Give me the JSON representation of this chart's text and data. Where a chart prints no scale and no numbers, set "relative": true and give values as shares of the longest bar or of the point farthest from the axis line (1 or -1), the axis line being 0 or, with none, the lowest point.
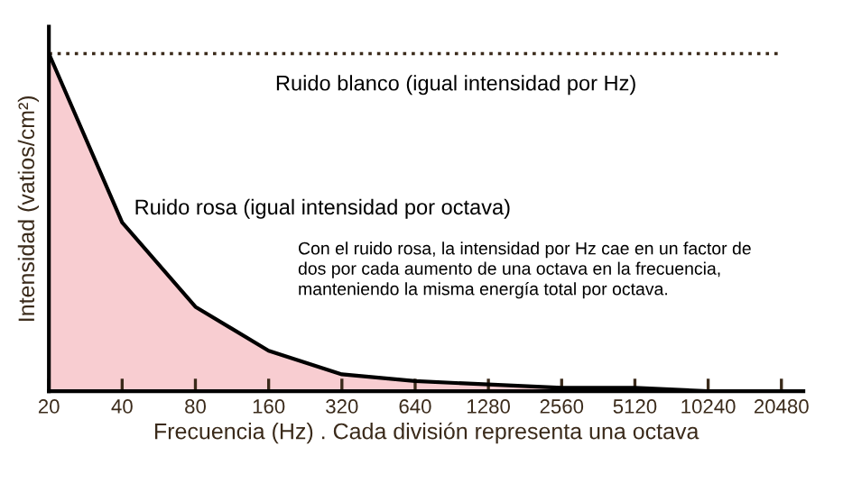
{
  "chart_data": {
    "type": "area",
    "xlabel": "Frecuencia (Hz) . Cada división representa una octava",
    "ylabel": "Intensidad (vatios/cm²)",
    "relative": true,
    "legend": false,
    "grid": false,
    "categories": [
      "20",
      "40",
      "80",
      "160",
      "320",
      "640",
      "1280",
      "2560",
      "5120",
      "10240",
      "20480"
    ],
    "series": [
      {
        "name": "Ruido blanco (igual intensidad por Hz)",
        "type": "line",
        "line_style": "dotted",
        "color": "#3a2a1a",
        "values": [
          1,
          1,
          1,
          1,
          1,
          1,
          1,
          1,
          1,
          1,
          1
        ]
      },
      {
        "name": "Ruido rosa (igual intensidad por octava)",
        "color": "#f8cdd1",
        "values": [
          1,
          0.5,
          0.25,
          0.12,
          0.05,
          0.03,
          0.02,
          0.01,
          0.01,
          0,
          0
        ]
      }
    ],
    "annotations": [
      "Con el ruido rosa, la intensidad por Hz cae en un factor de dos por cada aumento de una octava en la frecuencia, manteniendo la misma energía total por octava."
    ]
  }
}
